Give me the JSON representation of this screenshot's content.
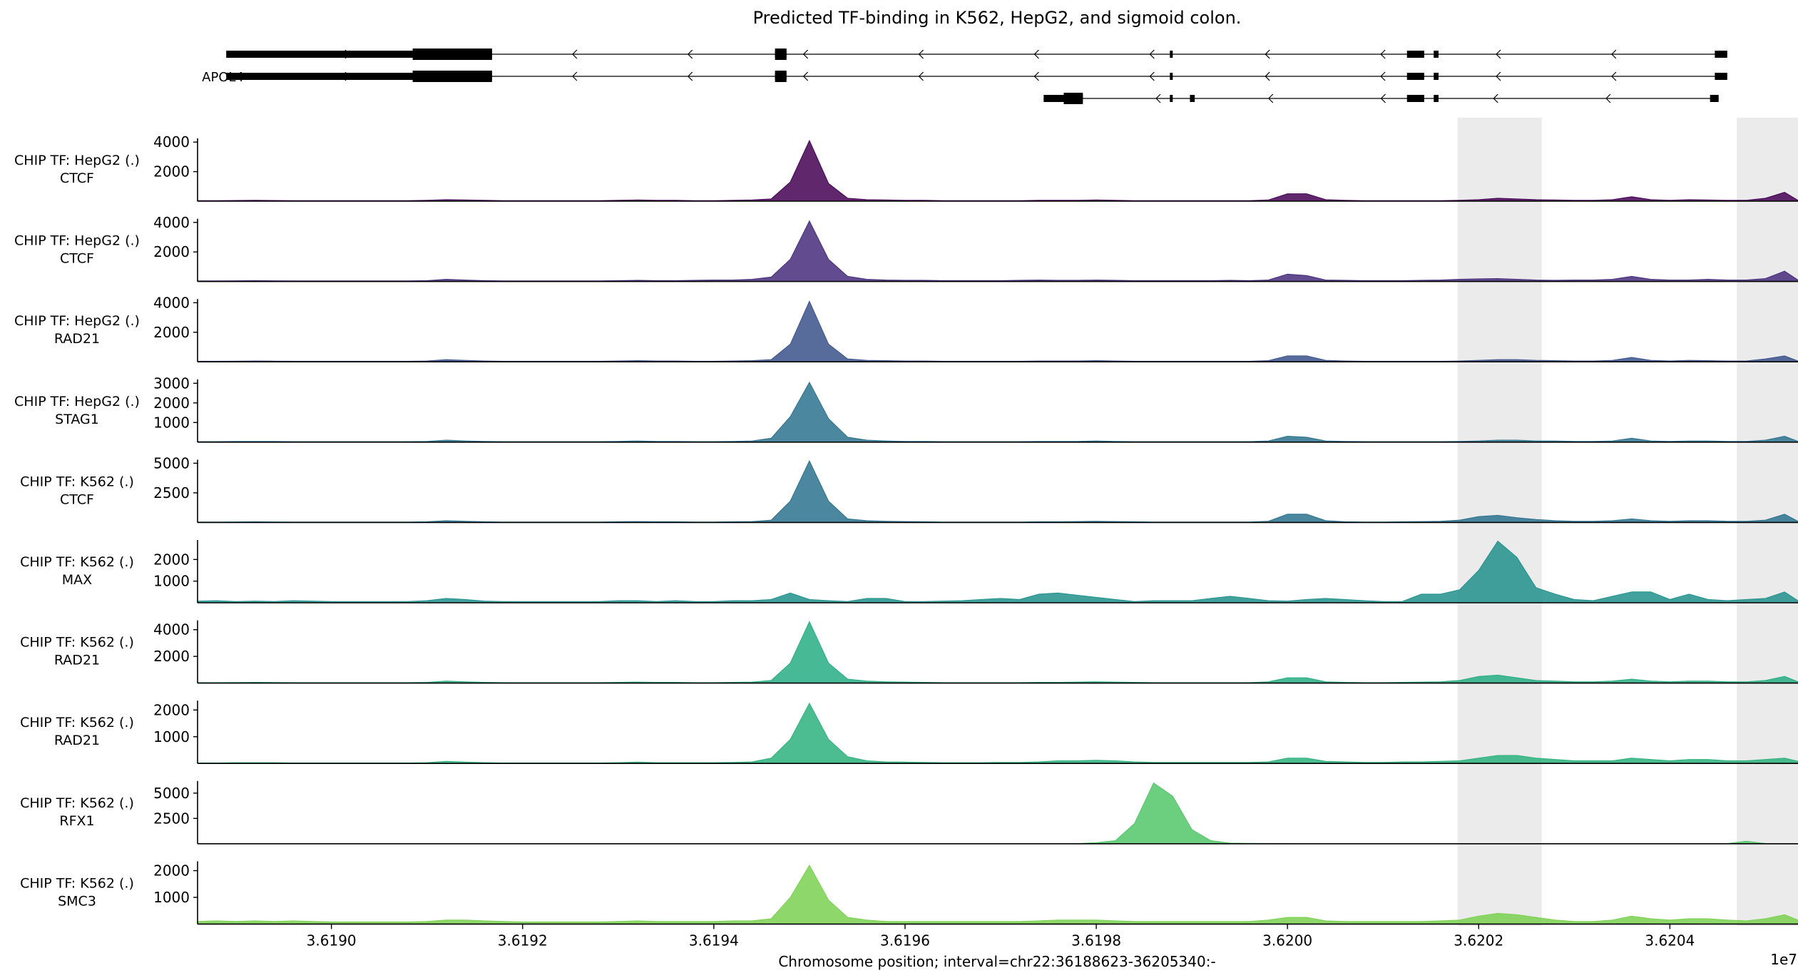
{
  "chart_data": {
    "type": "area",
    "title": "Predicted TF-binding in K562, HepG2, and sigmoid colon.",
    "xlabel": "Chromosome position; interval=chr22:36188623-36205340:-",
    "x_offset_label": "1e7",
    "xlim": [
      3.61886,
      3.620534
    ],
    "x_ticks": [
      3.619,
      3.6192,
      3.6194,
      3.6196,
      3.6198,
      3.62,
      3.6202,
      3.6204
    ],
    "x_tick_labels": [
      "3.6190",
      "3.6192",
      "3.6194",
      "3.6196",
      "3.6198",
      "3.6200",
      "3.6202",
      "3.6204"
    ],
    "highlight_regions": [
      [
        3.620178,
        3.620266
      ],
      [
        3.62047,
        3.620534
      ]
    ],
    "highlight_color": "#ebebeb",
    "gene_track": {
      "gene_label": "APOL4",
      "transcripts": [
        {
          "start": 3.61889,
          "end": 3.62046,
          "exons": [
            [
              3.61889,
              3.619085
            ],
            [
              3.619085,
              3.619168
            ],
            [
              3.619464,
              3.619476
            ],
            [
              3.619877,
              3.61988
            ],
            [
              3.620125,
              3.620143
            ],
            [
              3.620153,
              3.620158
            ],
            [
              3.620447,
              3.62046
            ]
          ],
          "thick": [
            [
              3.619085,
              3.619168
            ],
            [
              3.619464,
              3.619476
            ]
          ]
        },
        {
          "start": 3.61889,
          "end": 3.62046,
          "exons": [
            [
              3.61889,
              3.619085
            ],
            [
              3.619085,
              3.619168
            ],
            [
              3.619464,
              3.619476
            ],
            [
              3.619877,
              3.61988
            ],
            [
              3.620125,
              3.620143
            ],
            [
              3.620153,
              3.620158
            ],
            [
              3.620447,
              3.62046
            ]
          ],
          "thick": [
            [
              3.619085,
              3.619168
            ],
            [
              3.619464,
              3.619476
            ]
          ]
        },
        {
          "start": 3.619745,
          "end": 3.620451,
          "exons": [
            [
              3.619745,
              3.619766
            ],
            [
              3.619766,
              3.619786
            ],
            [
              3.619877,
              3.61988
            ],
            [
              3.619898,
              3.619903
            ],
            [
              3.620125,
              3.620143
            ],
            [
              3.620153,
              3.620158
            ],
            [
              3.620442,
              3.620451
            ]
          ],
          "thick": [
            [
              3.619766,
              3.619786
            ]
          ]
        }
      ]
    },
    "x": [
      3.61886,
      3.61888,
      3.6189,
      3.61892,
      3.61894,
      3.61896,
      3.61898,
      3.619,
      3.61902,
      3.61904,
      3.61906,
      3.61908,
      3.6191,
      3.61912,
      3.61914,
      3.61916,
      3.61918,
      3.6192,
      3.61922,
      3.61924,
      3.61926,
      3.61928,
      3.6193,
      3.61932,
      3.61934,
      3.61936,
      3.61938,
      3.6194,
      3.61942,
      3.61944,
      3.61946,
      3.61948,
      3.6195,
      3.61952,
      3.61954,
      3.61956,
      3.61958,
      3.6196,
      3.61962,
      3.61964,
      3.61966,
      3.61968,
      3.6197,
      3.61972,
      3.61974,
      3.61976,
      3.61978,
      3.6198,
      3.61982,
      3.61984,
      3.61986,
      3.61988,
      3.6199,
      3.61992,
      3.61994,
      3.61996,
      3.61998,
      3.62,
      3.62002,
      3.62004,
      3.62006,
      3.62008,
      3.6201,
      3.62012,
      3.62014,
      3.62016,
      3.62018,
      3.6202,
      3.62022,
      3.62024,
      3.62026,
      3.62028,
      3.6203,
      3.62032,
      3.62034,
      3.62036,
      3.62038,
      3.6204,
      3.62042,
      3.62044,
      3.62046,
      3.62048,
      3.6205,
      3.62052,
      3.620534
    ],
    "tracks": [
      {
        "label_line1": "CHIP TF: HepG2 (.)",
        "label_line2": "CTCF",
        "color": "#440154",
        "ylim": [
          0,
          4250
        ],
        "yticks": [
          2000,
          4000
        ],
        "values": [
          40,
          40,
          50,
          60,
          50,
          40,
          40,
          40,
          40,
          40,
          40,
          40,
          60,
          100,
          80,
          60,
          40,
          40,
          40,
          40,
          40,
          40,
          60,
          80,
          60,
          60,
          40,
          40,
          60,
          80,
          150,
          1300,
          4100,
          1200,
          200,
          100,
          80,
          60,
          60,
          40,
          40,
          40,
          40,
          40,
          60,
          60,
          60,
          80,
          60,
          40,
          40,
          40,
          40,
          40,
          40,
          40,
          80,
          500,
          500,
          100,
          60,
          40,
          40,
          40,
          40,
          40,
          60,
          100,
          200,
          150,
          100,
          80,
          60,
          60,
          100,
          300,
          100,
          60,
          100,
          80,
          60,
          60,
          200,
          600,
          60
        ]
      },
      {
        "label_line1": "CHIP TF: HepG2 (.)",
        "label_line2": "CTCF",
        "color": "#472d7b",
        "ylim": [
          0,
          4250
        ],
        "yticks": [
          2000,
          4000
        ],
        "values": [
          40,
          40,
          50,
          60,
          50,
          40,
          40,
          40,
          40,
          40,
          40,
          40,
          60,
          150,
          100,
          60,
          40,
          40,
          40,
          40,
          40,
          40,
          60,
          80,
          60,
          60,
          80,
          100,
          100,
          150,
          300,
          1500,
          4100,
          1500,
          350,
          150,
          100,
          80,
          80,
          60,
          60,
          60,
          60,
          80,
          100,
          80,
          80,
          100,
          80,
          60,
          60,
          60,
          60,
          60,
          80,
          60,
          100,
          500,
          400,
          100,
          80,
          60,
          60,
          60,
          80,
          100,
          150,
          180,
          200,
          150,
          100,
          80,
          100,
          100,
          150,
          350,
          150,
          100,
          100,
          150,
          100,
          100,
          200,
          700,
          100
        ]
      },
      {
        "label_line1": "CHIP TF: HepG2 (.)",
        "label_line2": "RAD21",
        "color": "#3b528b",
        "ylim": [
          0,
          4250
        ],
        "yticks": [
          2000,
          4000
        ],
        "values": [
          40,
          40,
          50,
          60,
          50,
          40,
          40,
          40,
          40,
          40,
          40,
          40,
          60,
          150,
          100,
          60,
          40,
          40,
          40,
          40,
          40,
          40,
          60,
          80,
          60,
          60,
          40,
          40,
          60,
          80,
          150,
          1200,
          4100,
          1200,
          200,
          100,
          80,
          60,
          60,
          40,
          40,
          40,
          40,
          40,
          60,
          60,
          60,
          80,
          60,
          40,
          40,
          40,
          40,
          40,
          40,
          40,
          80,
          400,
          400,
          100,
          60,
          40,
          40,
          40,
          40,
          40,
          60,
          100,
          150,
          150,
          100,
          80,
          60,
          60,
          100,
          300,
          100,
          60,
          100,
          80,
          60,
          60,
          200,
          400,
          60
        ]
      },
      {
        "label_line1": "CHIP TF: HepG2 (.)",
        "label_line2": "STAG1",
        "color": "#2c728e",
        "ylim": [
          0,
          3200
        ],
        "yticks": [
          1000,
          2000,
          3000
        ],
        "values": [
          30,
          30,
          40,
          40,
          40,
          30,
          30,
          30,
          30,
          30,
          30,
          30,
          40,
          100,
          60,
          40,
          30,
          30,
          30,
          30,
          30,
          30,
          40,
          60,
          40,
          40,
          30,
          30,
          40,
          60,
          200,
          1300,
          3050,
          1200,
          250,
          100,
          60,
          40,
          40,
          30,
          30,
          30,
          30,
          30,
          40,
          40,
          40,
          60,
          40,
          30,
          30,
          30,
          30,
          30,
          30,
          30,
          60,
          300,
          250,
          60,
          40,
          30,
          30,
          30,
          30,
          30,
          40,
          60,
          100,
          100,
          60,
          60,
          40,
          40,
          60,
          200,
          60,
          40,
          60,
          60,
          40,
          40,
          100,
          300,
          40
        ]
      },
      {
        "label_line1": "CHIP TF: K562 (.)",
        "label_line2": "CTCF",
        "color": "#2c728e",
        "ylim": [
          0,
          5300
        ],
        "yticks": [
          2500,
          5000
        ],
        "values": [
          40,
          40,
          50,
          60,
          50,
          40,
          40,
          40,
          40,
          40,
          40,
          40,
          60,
          150,
          100,
          60,
          40,
          40,
          40,
          40,
          40,
          40,
          60,
          80,
          60,
          60,
          40,
          40,
          60,
          80,
          200,
          1800,
          5200,
          1800,
          300,
          150,
          100,
          80,
          60,
          40,
          40,
          40,
          40,
          40,
          60,
          60,
          80,
          100,
          80,
          60,
          40,
          40,
          40,
          40,
          40,
          40,
          100,
          700,
          700,
          150,
          60,
          40,
          40,
          60,
          80,
          100,
          200,
          500,
          600,
          400,
          250,
          150,
          100,
          100,
          150,
          300,
          150,
          100,
          150,
          150,
          100,
          100,
          200,
          700,
          100
        ]
      },
      {
        "label_line1": "CHIP TF: K562 (.)",
        "label_line2": "MAX",
        "color": "#21918c",
        "ylim": [
          0,
          2900
        ],
        "yticks": [
          1000,
          2000
        ],
        "values": [
          80,
          100,
          60,
          80,
          60,
          100,
          80,
          60,
          60,
          60,
          60,
          60,
          100,
          200,
          150,
          80,
          60,
          60,
          60,
          60,
          60,
          60,
          100,
          100,
          60,
          100,
          60,
          60,
          100,
          100,
          150,
          450,
          150,
          100,
          60,
          200,
          200,
          60,
          60,
          80,
          100,
          150,
          200,
          150,
          400,
          450,
          350,
          250,
          150,
          60,
          100,
          100,
          100,
          200,
          300,
          200,
          100,
          80,
          150,
          200,
          150,
          100,
          60,
          60,
          400,
          400,
          600,
          1500,
          2850,
          2100,
          700,
          400,
          150,
          100,
          300,
          500,
          500,
          150,
          400,
          150,
          100,
          150,
          200,
          500,
          100
        ]
      },
      {
        "label_line1": "CHIP TF: K562 (.)",
        "label_line2": "RAD21",
        "color": "#27ad81",
        "ylim": [
          0,
          4700
        ],
        "yticks": [
          2000,
          4000
        ],
        "values": [
          40,
          40,
          50,
          60,
          50,
          40,
          40,
          40,
          40,
          40,
          40,
          40,
          60,
          150,
          100,
          60,
          40,
          40,
          40,
          40,
          40,
          40,
          60,
          80,
          60,
          60,
          40,
          40,
          60,
          80,
          200,
          1500,
          4600,
          1500,
          300,
          150,
          100,
          80,
          60,
          40,
          40,
          40,
          40,
          40,
          60,
          60,
          80,
          100,
          80,
          60,
          40,
          40,
          40,
          40,
          40,
          40,
          100,
          400,
          400,
          100,
          60,
          40,
          40,
          60,
          80,
          100,
          200,
          500,
          600,
          400,
          200,
          150,
          100,
          100,
          150,
          300,
          150,
          100,
          150,
          150,
          100,
          100,
          200,
          500,
          100
        ]
      },
      {
        "label_line1": "CHIP TF: K562 (.)",
        "label_line2": "RAD21",
        "color": "#2db27d",
        "ylim": [
          0,
          2350
        ],
        "yticks": [
          1000,
          2000
        ],
        "values": [
          20,
          20,
          30,
          30,
          30,
          20,
          20,
          20,
          20,
          20,
          20,
          20,
          30,
          80,
          50,
          30,
          20,
          20,
          20,
          20,
          20,
          20,
          30,
          50,
          30,
          30,
          30,
          30,
          40,
          60,
          200,
          900,
          2250,
          900,
          250,
          100,
          60,
          50,
          40,
          30,
          30,
          30,
          40,
          40,
          60,
          100,
          100,
          120,
          100,
          60,
          40,
          40,
          40,
          40,
          40,
          40,
          60,
          200,
          200,
          80,
          60,
          40,
          40,
          60,
          60,
          80,
          100,
          200,
          300,
          300,
          200,
          150,
          100,
          100,
          100,
          200,
          150,
          100,
          150,
          150,
          100,
          100,
          150,
          200,
          80
        ]
      },
      {
        "label_line1": "CHIP TF: K562 (.)",
        "label_line2": "RFX1",
        "color": "#52c569",
        "ylim": [
          0,
          6200
        ],
        "yticks": [
          2500,
          5000
        ],
        "values": [
          20,
          20,
          20,
          20,
          20,
          20,
          20,
          20,
          20,
          20,
          20,
          20,
          20,
          20,
          20,
          20,
          20,
          20,
          20,
          20,
          20,
          20,
          20,
          20,
          20,
          20,
          20,
          20,
          20,
          20,
          20,
          20,
          20,
          20,
          20,
          20,
          20,
          20,
          20,
          20,
          20,
          20,
          20,
          20,
          20,
          20,
          20,
          100,
          300,
          2000,
          6000,
          4700,
          1400,
          300,
          60,
          40,
          30,
          30,
          20,
          20,
          20,
          20,
          20,
          20,
          20,
          20,
          20,
          20,
          20,
          20,
          20,
          20,
          20,
          20,
          20,
          20,
          20,
          20,
          20,
          20,
          20,
          250,
          20,
          20,
          20
        ]
      },
      {
        "label_line1": "CHIP TF: K562 (.)",
        "label_line2": "SMC3",
        "color": "#7ad151",
        "ylim": [
          0,
          2350
        ],
        "yticks": [
          1000,
          2000
        ],
        "values": [
          100,
          120,
          100,
          120,
          100,
          120,
          100,
          80,
          80,
          80,
          80,
          80,
          100,
          150,
          150,
          120,
          100,
          80,
          80,
          80,
          80,
          80,
          100,
          120,
          100,
          100,
          100,
          100,
          120,
          120,
          200,
          1000,
          2200,
          900,
          250,
          150,
          100,
          100,
          100,
          100,
          100,
          100,
          100,
          100,
          120,
          150,
          150,
          150,
          120,
          100,
          100,
          100,
          100,
          100,
          100,
          100,
          150,
          250,
          250,
          120,
          100,
          100,
          100,
          100,
          100,
          120,
          150,
          300,
          400,
          350,
          250,
          150,
          100,
          100,
          150,
          300,
          200,
          150,
          200,
          200,
          150,
          120,
          200,
          350,
          150
        ]
      }
    ]
  }
}
